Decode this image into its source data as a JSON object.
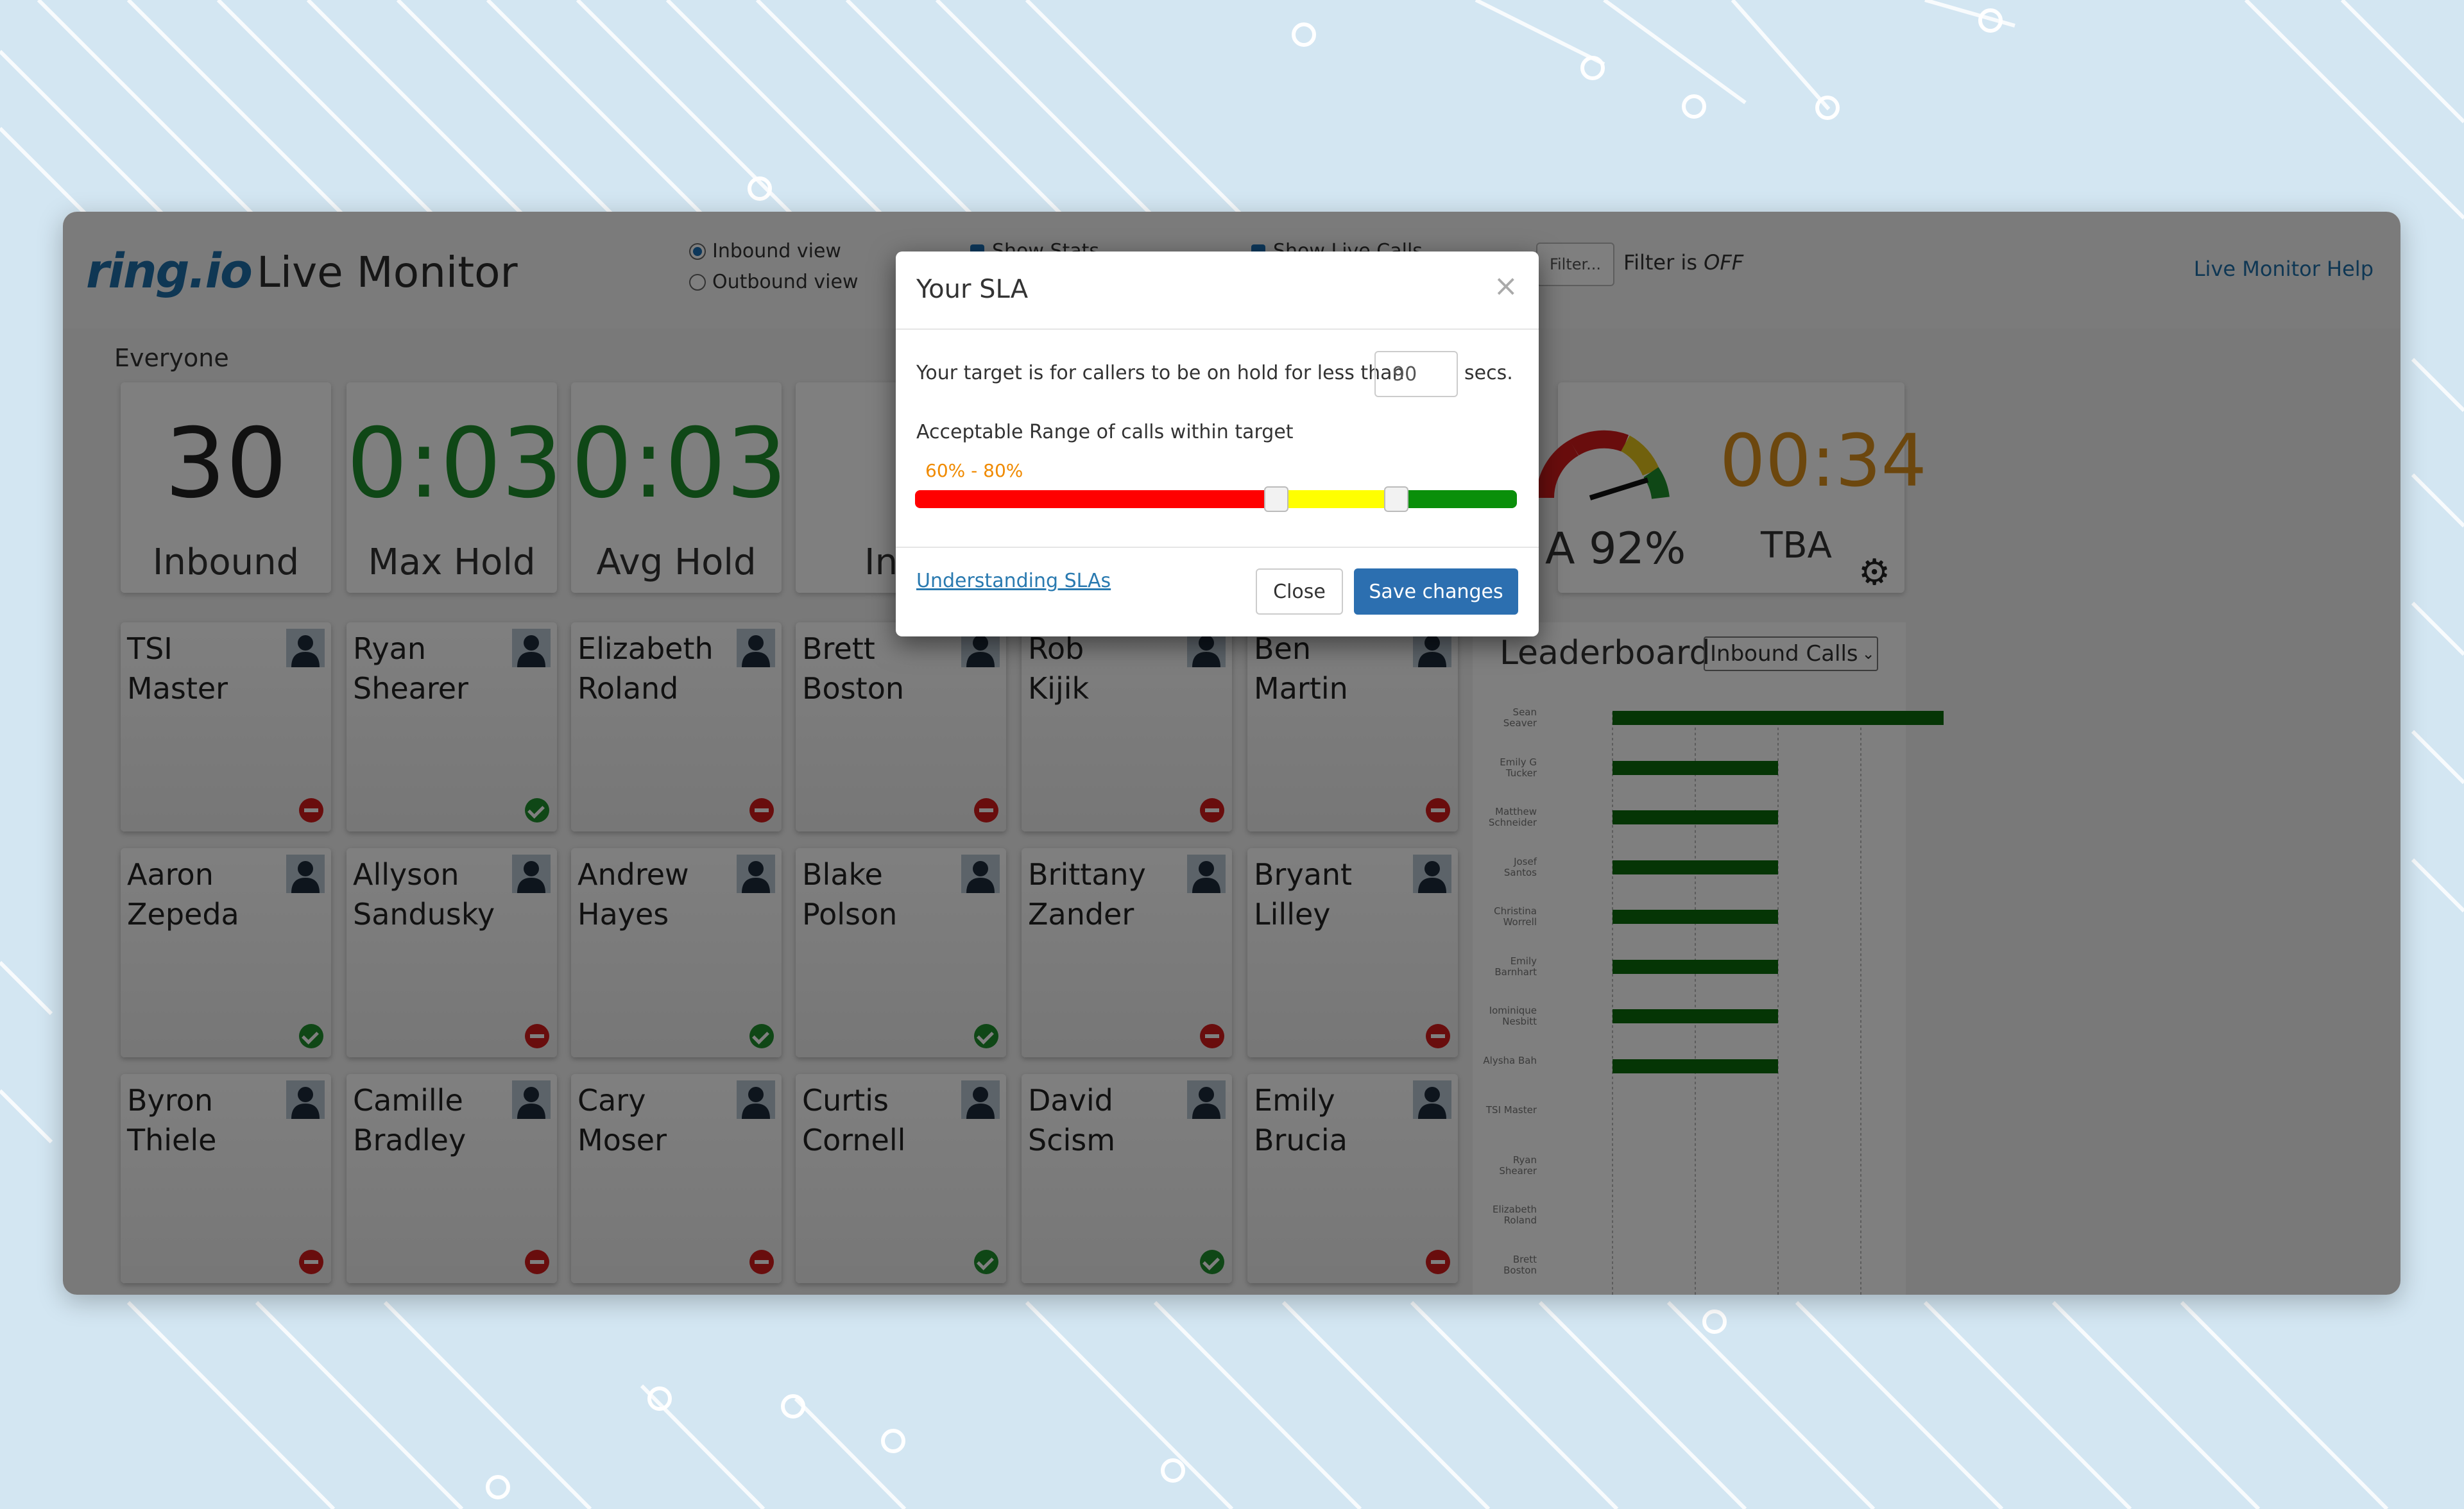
{
  "colors": {
    "brand_blue": "#1f6fa8",
    "green": "#1f8e2c",
    "orange": "#d98f1c",
    "red": "#d21b1b"
  },
  "header": {
    "logo": "ring.io",
    "title": "Live Monitor",
    "inbound_view": "Inbound view",
    "outbound_view": "Outbound view",
    "show_stats": "Show Stats",
    "show_live_calls": "Show Live Calls",
    "filter_button": "Filter...",
    "filter_text": "Filter is",
    "filter_state": "OFF",
    "help_link": "Live Monitor Help"
  },
  "group_label": "Everyone",
  "stats": [
    {
      "value": "30",
      "label": "Inbound"
    },
    {
      "value": "0:03",
      "label": "Max Hold"
    },
    {
      "value": "0:03",
      "label": "Avg Hold"
    },
    {
      "value": "",
      "label": "In Q"
    }
  ],
  "gauge": {
    "sla_label": "A 92%",
    "time": "00:34",
    "time_label": "TBA"
  },
  "agents": [
    {
      "first": "TSI",
      "last": "Master",
      "status": "red"
    },
    {
      "first": "Ryan",
      "last": "Shearer",
      "status": "green"
    },
    {
      "first": "Elizabeth",
      "last": "Roland",
      "status": "red"
    },
    {
      "first": "Brett",
      "last": "Boston",
      "status": "red"
    },
    {
      "first": "Rob",
      "last": "Kijik",
      "status": "red"
    },
    {
      "first": "Ben",
      "last": "Martin",
      "status": "red"
    },
    {
      "first": "Aaron",
      "last": "Zepeda",
      "status": "green"
    },
    {
      "first": "Allyson",
      "last": "Sandusky",
      "status": "red"
    },
    {
      "first": "Andrew",
      "last": "Hayes",
      "status": "green"
    },
    {
      "first": "Blake",
      "last": "Polson",
      "status": "green"
    },
    {
      "first": "Brittany",
      "last": "Zander",
      "status": "red"
    },
    {
      "first": "Bryant",
      "last": "Lilley",
      "status": "red"
    },
    {
      "first": "Byron",
      "last": "Thiele",
      "status": "red"
    },
    {
      "first": "Camille",
      "last": "Bradley",
      "status": "red"
    },
    {
      "first": "Cary",
      "last": "Moser",
      "status": "red"
    },
    {
      "first": "Curtis",
      "last": "Cornell",
      "status": "green"
    },
    {
      "first": "David",
      "last": "Scism",
      "status": "green"
    },
    {
      "first": "Emily",
      "last": "Brucia",
      "status": "red"
    }
  ],
  "leaderboard": {
    "title": "Leaderboard",
    "select": "Inbound Calls",
    "rows": [
      {
        "name": "Sean Seaver",
        "value": 1.0
      },
      {
        "name": "Emily G Tucker",
        "value": 0.5
      },
      {
        "name": "Matthew Schneider",
        "value": 0.5
      },
      {
        "name": "Josef Santos",
        "value": 0.5
      },
      {
        "name": "Christina Worrell",
        "value": 0.5
      },
      {
        "name": "Emily Barnhart",
        "value": 0.5
      },
      {
        "name": "Iominique Nesbitt",
        "value": 0.5
      },
      {
        "name": "Alysha Bah",
        "value": 0.5
      },
      {
        "name": "TSI Master",
        "value": 0
      },
      {
        "name": "Ryan Shearer",
        "value": 0
      },
      {
        "name": "Elizabeth Roland",
        "value": 0
      },
      {
        "name": "Brett Boston",
        "value": 0
      }
    ]
  },
  "modal": {
    "title": "Your SLA",
    "close_x": "×",
    "target_text": "Your target is for callers to be on hold for less than",
    "target_value": "90",
    "target_unit": "secs.",
    "range_label": "Acceptable Range of calls within target",
    "range_value": "60% - 80%",
    "range_low": 0.6,
    "range_high": 0.8,
    "link": "Understanding SLAs",
    "close_button": "Close",
    "save_button": "Save changes"
  }
}
